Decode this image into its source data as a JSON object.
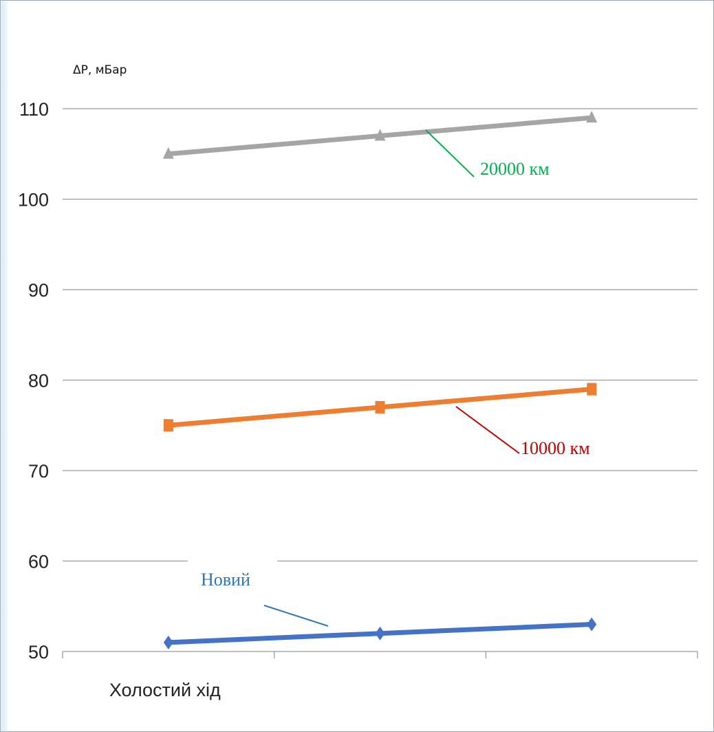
{
  "chart_data": {
    "type": "line",
    "ylabel": "ΔР, мБар",
    "xlabel": "",
    "ylim": [
      50,
      110
    ],
    "yticks": [
      50,
      60,
      70,
      80,
      90,
      100,
      110
    ],
    "grid": true,
    "categories": [
      "Холостий хід",
      "",
      ""
    ],
    "x_positions": [
      0.5,
      1.5,
      2.5
    ],
    "x_range": [
      0,
      3
    ],
    "series": [
      {
        "name": "Новий",
        "marker": "diamond",
        "color": "#4472c4",
        "label_color": "#2e75b6",
        "values": [
          51,
          52,
          53
        ]
      },
      {
        "name": "10000 км",
        "marker": "square",
        "color": "#ed7d31",
        "label_color": "#c00000",
        "values": [
          75,
          77,
          79
        ]
      },
      {
        "name": "20000 км",
        "marker": "triangle",
        "color": "#a5a5a5",
        "label_color": "#00b050",
        "values": [
          105,
          107,
          109
        ]
      }
    ]
  }
}
